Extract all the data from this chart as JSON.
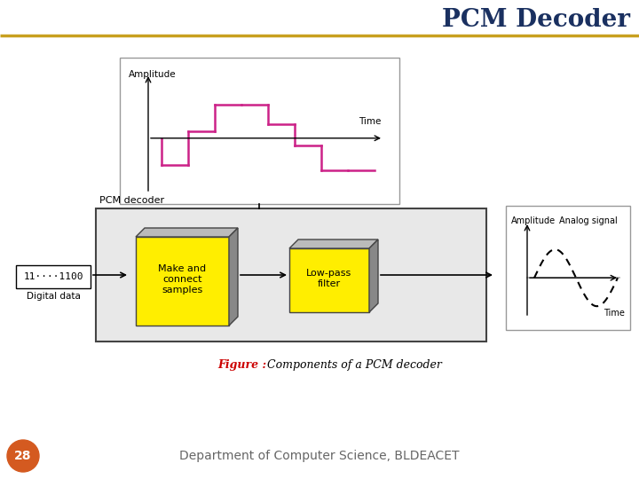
{
  "title": "PCM Decoder",
  "title_color": "#1a3060",
  "title_fontsize": 20,
  "fig_bg": "#ffffff",
  "top_bar_color": "#c8a020",
  "figure_caption_bold": "Figure :",
  "figure_caption_rest": " Components of a PCM decoder",
  "footer_text": "Department of Computer Science, BLDEACET",
  "footer_num": "28",
  "footer_circle_color": "#d45a20",
  "stair_color": "#cc2288",
  "yellow_face": "#ffee00",
  "gray_side": "#888888",
  "gray_top": "#bbbbbb"
}
